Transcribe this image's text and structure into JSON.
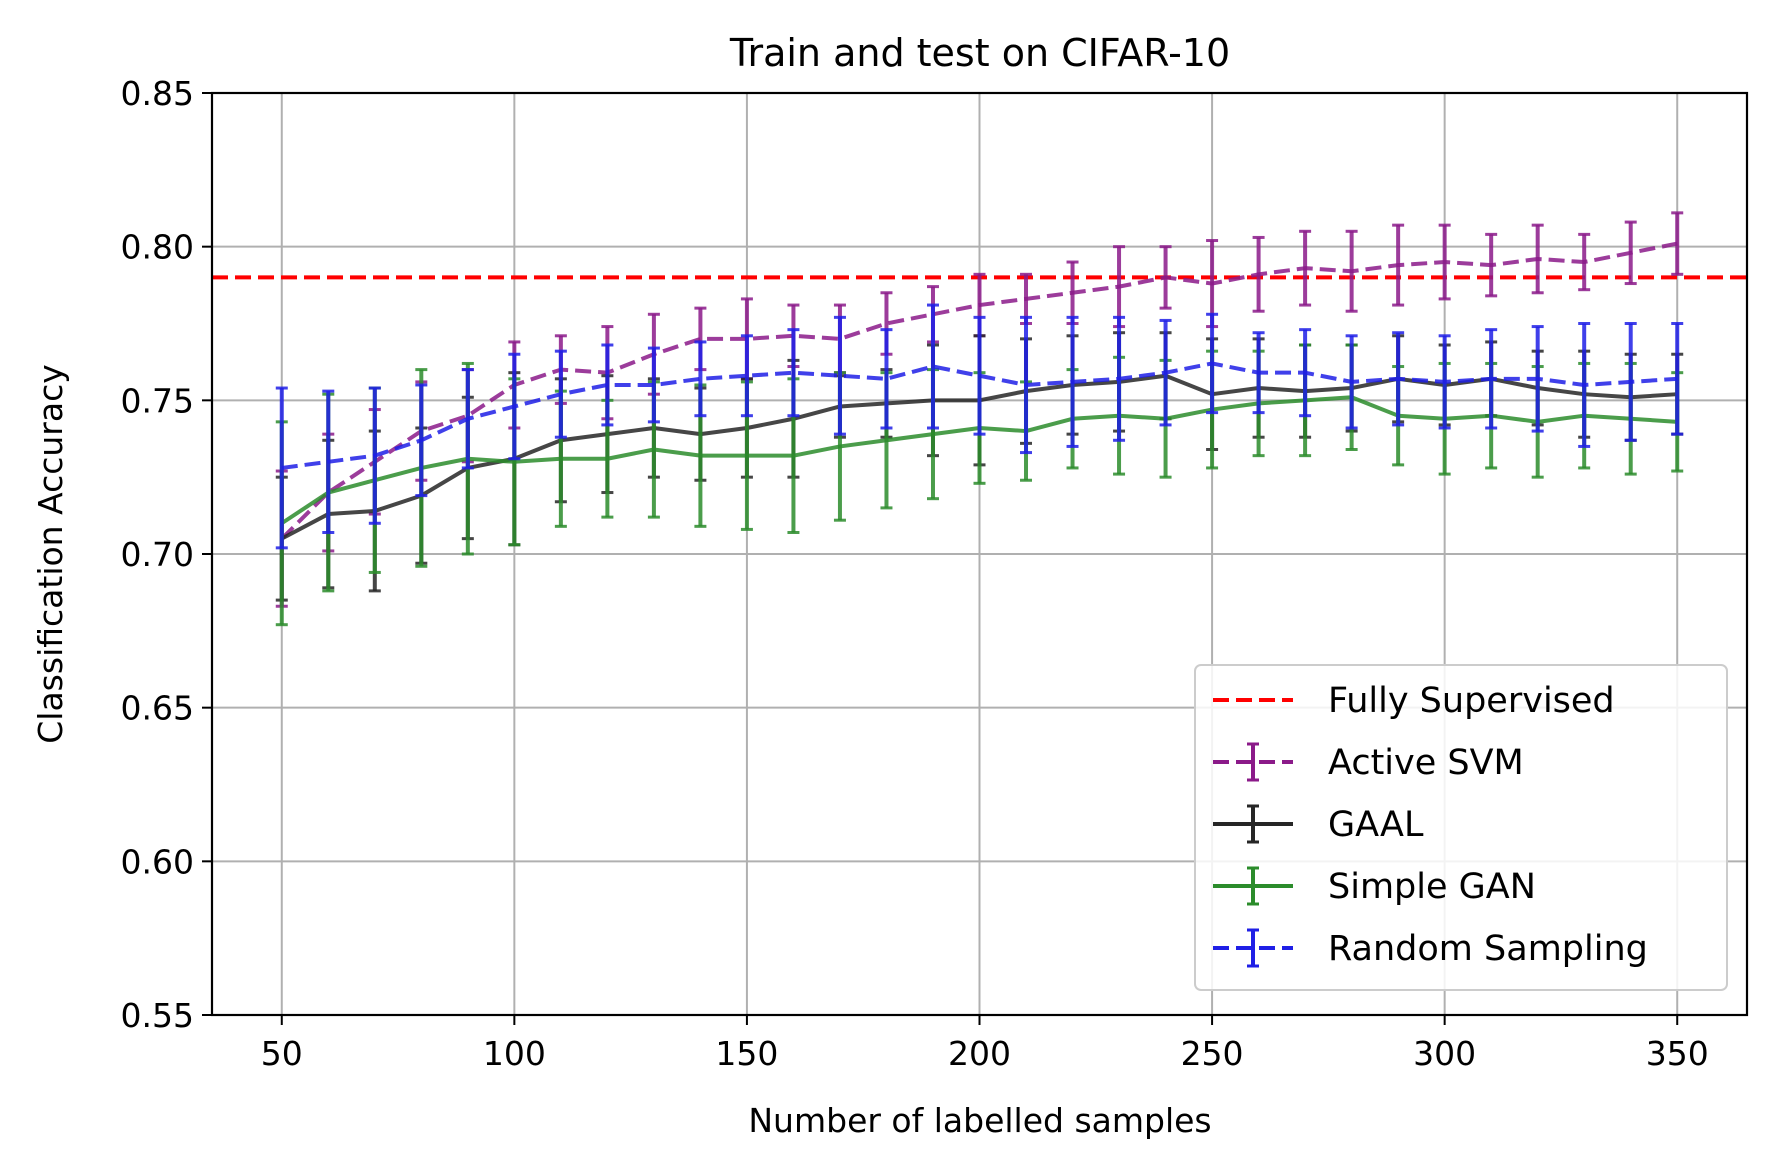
{
  "chart_data": {
    "type": "line",
    "title": "Train and test on CIFAR-10",
    "xlabel": "Number of labelled samples",
    "ylabel": "Classification Accuracy",
    "xlim": [
      35,
      365
    ],
    "ylim": [
      0.55,
      0.85
    ],
    "xticks": [
      50,
      100,
      150,
      200,
      250,
      300,
      350
    ],
    "xtick_labels": [
      "50",
      "100",
      "150",
      "200",
      "250",
      "300",
      "350"
    ],
    "yticks": [
      0.55,
      0.6,
      0.65,
      0.7,
      0.75,
      0.8,
      0.85
    ],
    "ytick_labels": [
      "0.55",
      "0.60",
      "0.65",
      "0.70",
      "0.75",
      "0.80",
      "0.85"
    ],
    "grid": true,
    "legend_position": "lower-right",
    "x": [
      50,
      60,
      70,
      80,
      90,
      100,
      110,
      120,
      130,
      140,
      150,
      160,
      170,
      180,
      190,
      200,
      210,
      220,
      230,
      240,
      250,
      260,
      270,
      280,
      290,
      300,
      310,
      320,
      330,
      340,
      350
    ],
    "reference_line": {
      "name": "Fully Supervised",
      "y": 0.79,
      "color": "#ff0000",
      "style": "dashed"
    },
    "series": [
      {
        "name": "Active SVM",
        "color": "#8b1a89",
        "style": "dashed",
        "values": [
          0.705,
          0.72,
          0.73,
          0.74,
          0.745,
          0.755,
          0.76,
          0.759,
          0.765,
          0.77,
          0.77,
          0.771,
          0.77,
          0.775,
          0.778,
          0.781,
          0.783,
          0.785,
          0.787,
          0.79,
          0.788,
          0.791,
          0.793,
          0.792,
          0.794,
          0.795,
          0.794,
          0.796,
          0.795,
          0.798,
          0.801
        ],
        "errors": [
          0.022,
          0.019,
          0.017,
          0.016,
          0.015,
          0.014,
          0.011,
          0.015,
          0.013,
          0.01,
          0.013,
          0.01,
          0.011,
          0.01,
          0.009,
          0.01,
          0.008,
          0.01,
          0.013,
          0.01,
          0.014,
          0.012,
          0.012,
          0.013,
          0.013,
          0.012,
          0.01,
          0.011,
          0.009,
          0.01,
          0.01
        ]
      },
      {
        "name": "GAAL",
        "color": "#262626",
        "style": "solid",
        "values": [
          0.705,
          0.713,
          0.714,
          0.719,
          0.728,
          0.731,
          0.737,
          0.739,
          0.741,
          0.739,
          0.741,
          0.744,
          0.748,
          0.749,
          0.75,
          0.75,
          0.753,
          0.755,
          0.756,
          0.758,
          0.752,
          0.754,
          0.753,
          0.754,
          0.757,
          0.755,
          0.757,
          0.754,
          0.752,
          0.751,
          0.752
        ],
        "errors": [
          0.02,
          0.024,
          0.026,
          0.022,
          0.023,
          0.028,
          0.02,
          0.019,
          0.016,
          0.015,
          0.016,
          0.019,
          0.01,
          0.011,
          0.018,
          0.021,
          0.017,
          0.016,
          0.016,
          0.014,
          0.018,
          0.016,
          0.015,
          0.014,
          0.014,
          0.013,
          0.012,
          0.012,
          0.014,
          0.014,
          0.013
        ]
      },
      {
        "name": "Simple GAN",
        "color": "#2b8c2b",
        "style": "solid",
        "values": [
          0.71,
          0.72,
          0.724,
          0.728,
          0.731,
          0.73,
          0.731,
          0.731,
          0.734,
          0.732,
          0.732,
          0.732,
          0.735,
          0.737,
          0.739,
          0.741,
          0.74,
          0.744,
          0.745,
          0.744,
          0.747,
          0.749,
          0.75,
          0.751,
          0.745,
          0.744,
          0.745,
          0.743,
          0.745,
          0.744,
          0.743
        ],
        "errors": [
          0.033,
          0.032,
          0.03,
          0.032,
          0.031,
          0.027,
          0.022,
          0.019,
          0.022,
          0.023,
          0.024,
          0.025,
          0.024,
          0.022,
          0.021,
          0.018,
          0.016,
          0.016,
          0.019,
          0.019,
          0.019,
          0.017,
          0.018,
          0.017,
          0.016,
          0.018,
          0.017,
          0.018,
          0.017,
          0.018,
          0.016
        ]
      },
      {
        "name": "Random Sampling",
        "color": "#1f1fe6",
        "style": "dashed",
        "values": [
          0.728,
          0.73,
          0.732,
          0.737,
          0.744,
          0.748,
          0.752,
          0.755,
          0.755,
          0.757,
          0.758,
          0.759,
          0.758,
          0.757,
          0.761,
          0.758,
          0.755,
          0.756,
          0.757,
          0.759,
          0.762,
          0.759,
          0.759,
          0.756,
          0.757,
          0.756,
          0.757,
          0.757,
          0.755,
          0.756,
          0.757
        ],
        "errors": [
          0.026,
          0.023,
          0.022,
          0.018,
          0.016,
          0.017,
          0.014,
          0.013,
          0.012,
          0.012,
          0.013,
          0.014,
          0.019,
          0.016,
          0.02,
          0.019,
          0.022,
          0.021,
          0.02,
          0.017,
          0.016,
          0.013,
          0.014,
          0.015,
          0.015,
          0.015,
          0.016,
          0.017,
          0.02,
          0.019,
          0.018
        ]
      }
    ],
    "legend": [
      {
        "label": "Fully Supervised",
        "color": "#ff0000",
        "style": "dashed",
        "errorbar": false
      },
      {
        "label": "Active SVM",
        "color": "#8b1a89",
        "style": "dashed",
        "errorbar": true
      },
      {
        "label": "GAAL",
        "color": "#262626",
        "style": "solid",
        "errorbar": true
      },
      {
        "label": "Simple GAN",
        "color": "#2b8c2b",
        "style": "solid",
        "errorbar": true
      },
      {
        "label": "Random Sampling",
        "color": "#1f1fe6",
        "style": "dashed",
        "errorbar": true
      }
    ]
  }
}
